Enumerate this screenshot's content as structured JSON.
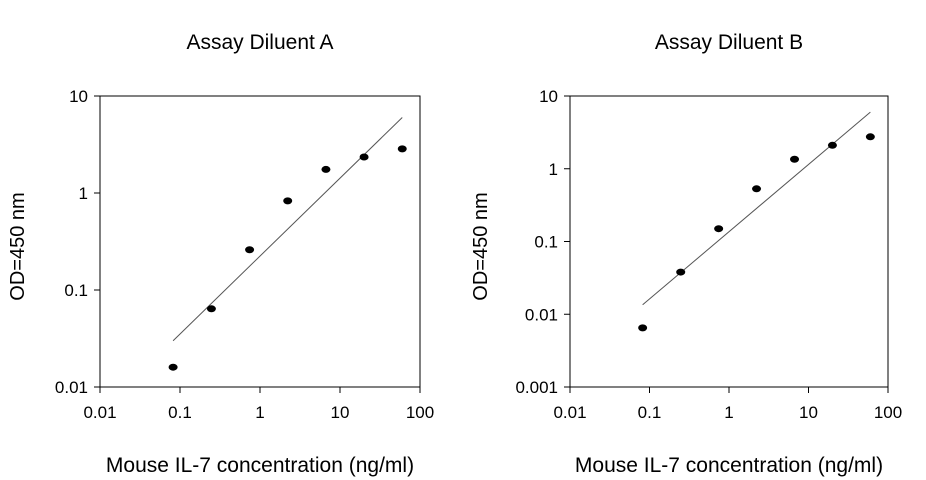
{
  "chart_data": [
    {
      "type": "scatter",
      "title": "Assay Diluent A",
      "xlabel": "Mouse IL-7 concentration (ng/ml)",
      "ylabel": "OD=450 nm",
      "xscale": "log",
      "yscale": "log",
      "xlim": [
        0.01,
        100
      ],
      "ylim": [
        0.01,
        10
      ],
      "xticks": [
        "0.01",
        "0.1",
        "1",
        "10",
        "100"
      ],
      "yticks": [
        "0.01",
        "0.1",
        "1",
        "10"
      ],
      "grid": false,
      "points": [
        {
          "x": 0.082,
          "y": 0.016
        },
        {
          "x": 0.247,
          "y": 0.064
        },
        {
          "x": 0.741,
          "y": 0.26
        },
        {
          "x": 2.22,
          "y": 0.83
        },
        {
          "x": 6.67,
          "y": 1.75
        },
        {
          "x": 20,
          "y": 2.35
        },
        {
          "x": 60,
          "y": 2.85
        }
      ],
      "fit_line": [
        {
          "x": 0.082,
          "y": 0.03
        },
        {
          "x": 60,
          "y": 6.0
        }
      ]
    },
    {
      "type": "scatter",
      "title": "Assay Diluent B",
      "xlabel": "Mouse IL-7 concentration (ng/ml)",
      "ylabel": "OD=450 nm",
      "xscale": "log",
      "yscale": "log",
      "xlim": [
        0.01,
        100
      ],
      "ylim": [
        0.001,
        10
      ],
      "xticks": [
        "0.01",
        "0.1",
        "1",
        "10",
        "100"
      ],
      "yticks": [
        "0.001",
        "0.01",
        "0.1",
        "1",
        "10"
      ],
      "grid": false,
      "points": [
        {
          "x": 0.082,
          "y": 0.0065
        },
        {
          "x": 0.247,
          "y": 0.038
        },
        {
          "x": 0.741,
          "y": 0.15
        },
        {
          "x": 2.22,
          "y": 0.53
        },
        {
          "x": 6.67,
          "y": 1.35
        },
        {
          "x": 20,
          "y": 2.1
        },
        {
          "x": 60,
          "y": 2.75
        }
      ],
      "fit_line": [
        {
          "x": 0.082,
          "y": 0.0135
        },
        {
          "x": 60,
          "y": 6.0
        }
      ]
    }
  ]
}
